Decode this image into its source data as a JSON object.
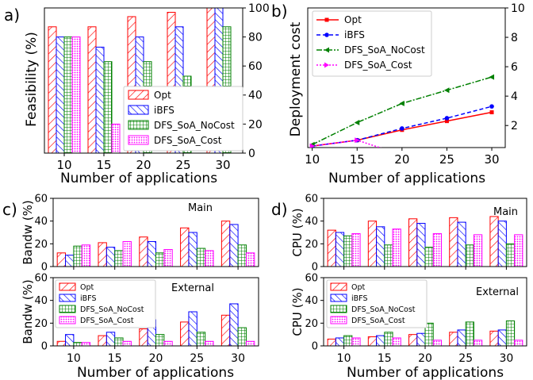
{
  "figure": {
    "colors": {
      "Opt": "#ff0000",
      "iBFS": "#0000ff",
      "DFS_SoA_NoCost": "#008000",
      "DFS_SoA_Cost": "#ff00ff"
    }
  },
  "chart_data": [
    {
      "id": "a",
      "panel_label": "a)",
      "type": "bar",
      "xlabel": "Number of applications",
      "ylabel": "Feasibility (%)",
      "categories": [
        "10",
        "15",
        "20",
        "25",
        "30"
      ],
      "ylim": [
        0,
        100
      ],
      "yticks": [
        "0",
        "20",
        "40",
        "60",
        "80",
        "100"
      ],
      "ytick_side": "right",
      "legend": {
        "position": "bottom-right",
        "entries": [
          "Opt",
          "iBFS",
          "DFS_SoA_NoCost",
          "DFS_SoA_Cost"
        ]
      },
      "series": [
        {
          "name": "Opt",
          "values": [
            87,
            87,
            94,
            97,
            100
          ]
        },
        {
          "name": "iBFS",
          "values": [
            80,
            73,
            80,
            87,
            100
          ]
        },
        {
          "name": "DFS_SoA_NoCost",
          "values": [
            80,
            63,
            63,
            53,
            87
          ]
        },
        {
          "name": "DFS_SoA_Cost",
          "values": [
            80,
            20,
            0,
            0,
            0
          ]
        }
      ]
    },
    {
      "id": "b",
      "panel_label": "b)",
      "type": "line",
      "xlabel": "Number of applications",
      "ylabel": "Deployment cost",
      "x": [
        10,
        15,
        20,
        25,
        30
      ],
      "xlim": [
        9.5,
        31.5
      ],
      "ylim": [
        0.5,
        10
      ],
      "xticks": [
        "10",
        "15",
        "20",
        "25",
        "30"
      ],
      "yticks": [
        "2",
        "4",
        "6",
        "8",
        "10"
      ],
      "ytick_side": "right",
      "legend": {
        "position": "top-left",
        "entries": [
          "Opt",
          "iBFS",
          "DFS_SoA_NoCost",
          "DFS_SoA_Cost"
        ]
      },
      "series": [
        {
          "name": "Opt",
          "values": [
            0.6,
            1.0,
            1.7,
            2.3,
            2.9
          ]
        },
        {
          "name": "iBFS",
          "values": [
            0.6,
            1.0,
            1.8,
            2.5,
            3.3
          ]
        },
        {
          "name": "DFS_SoA_NoCost",
          "values": [
            0.7,
            2.2,
            3.5,
            4.4,
            5.3
          ]
        },
        {
          "name": "DFS_SoA_Cost",
          "values": [
            0.6,
            1.0,
            0.0,
            null,
            null
          ]
        }
      ]
    },
    {
      "id": "c",
      "panel_label": "c)",
      "type": "bar",
      "xlabel": "Number of applications",
      "categories": [
        "10",
        "15",
        "20",
        "25",
        "30"
      ],
      "subplots": [
        {
          "title": "Main",
          "ylabel": "Bandw (%)",
          "ylim": [
            0,
            60
          ],
          "yticks": [
            "0",
            "20",
            "40",
            "60"
          ],
          "series": [
            {
              "name": "Opt",
              "values": [
                12,
                21,
                26,
                34,
                40
              ]
            },
            {
              "name": "iBFS",
              "values": [
                10,
                17,
                22,
                30,
                37
              ]
            },
            {
              "name": "DFS_SoA_NoCost",
              "values": [
                18,
                14,
                12,
                16,
                19
              ]
            },
            {
              "name": "DFS_SoA_Cost",
              "values": [
                19,
                22,
                15,
                14,
                12
              ]
            }
          ]
        },
        {
          "title": "External",
          "ylabel": "Bandw (%)",
          "ylim": [
            0,
            60
          ],
          "yticks": [
            "0",
            "20",
            "40",
            "60"
          ],
          "legend": {
            "position": "upper-left",
            "entries": [
              "Opt",
              "iBFS",
              "DFS_SoA_NoCost",
              "DFS_SoA_Cost"
            ]
          },
          "series": [
            {
              "name": "Opt",
              "values": [
                4,
                9,
                15,
                21,
                27
              ]
            },
            {
              "name": "iBFS",
              "values": [
                10,
                12,
                23,
                30,
                37
              ]
            },
            {
              "name": "DFS_SoA_NoCost",
              "values": [
                3,
                7,
                10,
                12,
                16
              ]
            },
            {
              "name": "DFS_SoA_Cost",
              "values": [
                3,
                4,
                4,
                4,
                4
              ]
            }
          ]
        }
      ]
    },
    {
      "id": "d",
      "panel_label": "d)",
      "type": "bar",
      "xlabel": "Number of applications",
      "categories": [
        "10",
        "15",
        "20",
        "25",
        "30"
      ],
      "subplots": [
        {
          "title": "Main",
          "ylabel": "CPU (%)",
          "ylim": [
            0,
            60
          ],
          "yticks": [
            "0",
            "20",
            "40",
            "60"
          ],
          "series": [
            {
              "name": "Opt",
              "values": [
                32,
                40,
                42,
                43,
                44
              ]
            },
            {
              "name": "iBFS",
              "values": [
                30,
                35,
                38,
                39,
                40
              ]
            },
            {
              "name": "DFS_SoA_NoCost",
              "values": [
                27,
                19,
                17,
                19,
                20
              ]
            },
            {
              "name": "DFS_SoA_Cost",
              "values": [
                29,
                33,
                29,
                28,
                28
              ]
            }
          ]
        },
        {
          "title": "External",
          "ylabel": "CPU (%)",
          "ylim": [
            0,
            60
          ],
          "yticks": [
            "0",
            "20",
            "40",
            "60"
          ],
          "legend": {
            "position": "upper-left",
            "entries": [
              "Opt",
              "iBFS",
              "DFS_SoA_NoCost",
              "DFS_SoA_Cost"
            ]
          },
          "series": [
            {
              "name": "Opt",
              "values": [
                6,
                8,
                10,
                12,
                13
              ]
            },
            {
              "name": "iBFS",
              "values": [
                7,
                9,
                11,
                14,
                14
              ]
            },
            {
              "name": "DFS_SoA_NoCost",
              "values": [
                9,
                12,
                20,
                21,
                22
              ]
            },
            {
              "name": "DFS_SoA_Cost",
              "values": [
                7,
                7,
                5,
                5,
                5
              ]
            }
          ]
        }
      ]
    }
  ]
}
